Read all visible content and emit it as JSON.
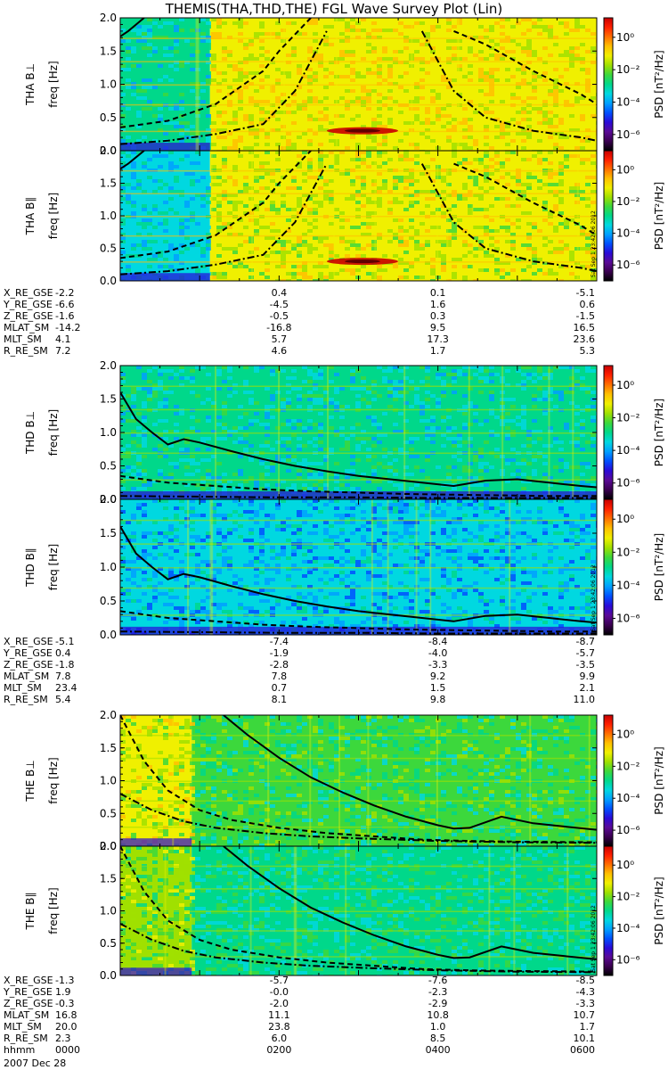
{
  "title": "THEMIS(THA,THD,THE) FGL Wave Survey Plot (Lin)",
  "timestamp": "Sat Sep  1 23:42:06 2012",
  "date_label": "2007 Dec 28",
  "colors": {
    "colorbar": [
      "#000000",
      "#3a0050",
      "#5a0a96",
      "#2a0ad8",
      "#0050ff",
      "#00a0ff",
      "#00d8e0",
      "#00d88a",
      "#3cd83c",
      "#a0e000",
      "#f0f000",
      "#ffc000",
      "#ff7000",
      "#ff2000",
      "#c80000"
    ],
    "curve": "#000000"
  },
  "colorbar": {
    "label": "PSD [nT²/Hz]",
    "ticks": [
      "10⁰",
      "10⁻²",
      "10⁻⁴",
      "10⁻⁶"
    ],
    "tick_exponents": [
      0,
      -2,
      -4,
      -6
    ]
  },
  "chart_data": {
    "type": "heatmap",
    "x_ticks": [
      "0000",
      "0200",
      "0400",
      "0600"
    ],
    "y_ticks": [
      "0.0",
      "0.5",
      "1.0",
      "1.5",
      "2.0"
    ],
    "ylim": [
      0,
      2.0
    ],
    "xlim_hours": [
      0,
      6
    ],
    "panels": [
      {
        "name": "THA B⊥",
        "ylabel": "freq [Hz]",
        "probe": "THA"
      },
      {
        "name": "THA B∥",
        "ylabel": "freq [Hz]",
        "probe": "THA"
      },
      {
        "name": "THD B⊥",
        "ylabel": "freq [Hz]",
        "probe": "THD"
      },
      {
        "name": "THD B∥",
        "ylabel": "freq [Hz]",
        "probe": "THD"
      },
      {
        "name": "THE B⊥",
        "ylabel": "freq [Hz]",
        "probe": "THE"
      },
      {
        "name": "THE B∥",
        "ylabel": "freq [Hz]",
        "probe": "THE"
      }
    ],
    "data_start_hours": {
      "THA": 0.0,
      "THD": 0.0,
      "THE": 0.0
    },
    "curves": {
      "THA": {
        "solid": {
          "x": [
            0,
            0.1,
            0.2,
            0.3
          ],
          "y": [
            1.72,
            1.8,
            1.9,
            2.0
          ]
        },
        "dash": {
          "x": [
            0,
            0.6,
            1.2,
            1.8,
            2.0,
            2.4,
            3.0,
            3.6,
            4.2,
            4.6,
            5.2,
            5.8,
            6
          ],
          "y": [
            0.35,
            0.45,
            0.7,
            1.2,
            1.5,
            2.0,
            null,
            null,
            1.8,
            1.6,
            1.2,
            0.85,
            0.7
          ]
        },
        "dashdot": {
          "x": [
            0,
            0.6,
            1.2,
            1.8,
            2.2,
            2.6,
            3.0,
            3.4,
            3.8,
            4.2,
            4.6,
            5.2,
            5.8,
            6
          ],
          "y": [
            0.1,
            0.15,
            0.25,
            0.4,
            0.9,
            1.8,
            null,
            null,
            1.8,
            0.9,
            0.5,
            0.3,
            0.2,
            0.15
          ]
        }
      },
      "THD": {
        "solid": {
          "x": [
            0,
            0.2,
            0.4,
            0.6,
            0.8,
            1.0,
            1.4,
            1.8,
            2.2,
            2.6,
            3.0,
            3.4,
            3.8,
            4.2,
            4.6,
            5.0,
            5.4,
            5.8,
            6
          ],
          "y": [
            1.6,
            1.2,
            1.0,
            0.82,
            0.9,
            0.85,
            0.72,
            0.6,
            0.5,
            0.42,
            0.35,
            0.3,
            0.25,
            0.2,
            0.28,
            0.3,
            0.25,
            0.2,
            0.18
          ]
        },
        "dash": {
          "x": [
            0,
            0.6,
            1.2,
            1.8,
            2.4,
            3.0,
            3.6,
            4.2,
            4.8,
            5.4,
            6
          ],
          "y": [
            0.35,
            0.25,
            0.2,
            0.15,
            0.12,
            0.1,
            0.08,
            0.07,
            0.06,
            0.05,
            0.05
          ]
        },
        "dashdot": {
          "x": [
            0,
            1,
            2,
            3,
            4,
            5,
            6
          ],
          "y": [
            0.05,
            0.04,
            0.03,
            0.03,
            0.02,
            0.02,
            0.02
          ]
        }
      },
      "THE": {
        "solid": {
          "x": [
            1.3,
            1.6,
            2.0,
            2.4,
            2.8,
            3.2,
            3.6,
            4.0,
            4.2,
            4.4,
            4.8,
            5.2,
            5.6,
            6
          ],
          "y": [
            2.0,
            1.7,
            1.35,
            1.05,
            0.82,
            0.62,
            0.45,
            0.32,
            0.27,
            0.28,
            0.45,
            0.35,
            0.3,
            0.25
          ]
        },
        "dash": {
          "x": [
            0,
            0.3,
            0.6,
            1.0,
            1.4,
            2.0,
            2.6,
            3.2,
            3.8,
            4.4,
            5,
            6
          ],
          "y": [
            2.0,
            1.3,
            0.85,
            0.55,
            0.4,
            0.28,
            0.2,
            0.15,
            0.1,
            0.08,
            0.07,
            0.06
          ]
        },
        "dashdot": {
          "x": [
            0,
            0.4,
            0.8,
            1.2,
            1.8,
            2.4,
            3.0,
            4,
            5,
            6
          ],
          "y": [
            0.8,
            0.55,
            0.38,
            0.28,
            0.2,
            0.15,
            0.12,
            0.08,
            0.06,
            0.05
          ]
        }
      }
    },
    "ephemeris": [
      {
        "labels": [
          "X_RE_GSE",
          "Y_RE_GSE",
          "Z_RE_GSE",
          "MLAT_SM",
          "MLT_SM",
          "R_RE_SM"
        ],
        "values": [
          [
            "-2.2",
            "0.4",
            "0.1",
            "-5.1"
          ],
          [
            "-6.6",
            "-4.5",
            "1.6",
            "0.6"
          ],
          [
            "-1.6",
            "-0.5",
            "0.3",
            "-1.5"
          ],
          [
            "-14.2",
            "-16.8",
            "9.5",
            "16.5"
          ],
          [
            "4.1",
            "5.7",
            "17.3",
            "23.6"
          ],
          [
            "7.2",
            "4.6",
            "1.7",
            "5.3"
          ]
        ]
      },
      {
        "labels": [
          "X_RE_GSE",
          "Y_RE_GSE",
          "Z_RE_GSE",
          "MLAT_SM",
          "MLT_SM",
          "R_RE_SM"
        ],
        "values": [
          [
            "-5.1",
            "-7.4",
            "-8.4",
            "-8.7"
          ],
          [
            "0.4",
            "-1.9",
            "-4.0",
            "-5.7"
          ],
          [
            "-1.8",
            "-2.8",
            "-3.3",
            "-3.5"
          ],
          [
            "7.8",
            "7.8",
            "9.2",
            "9.9"
          ],
          [
            "23.4",
            "0.7",
            "1.5",
            "2.1"
          ],
          [
            "5.4",
            "8.1",
            "9.8",
            "11.0"
          ]
        ]
      },
      {
        "labels": [
          "X_RE_GSE",
          "Y_RE_GSE",
          "Z_RE_GSE",
          "MLAT_SM",
          "MLT_SM",
          "R_RE_SM",
          "hhmm"
        ],
        "values": [
          [
            "-1.3",
            "-5.7",
            "-7.6",
            "-8.5"
          ],
          [
            "1.9",
            "-0.0",
            "-2.3",
            "-4.3"
          ],
          [
            "-0.3",
            "-2.0",
            "-2.9",
            "-3.3"
          ],
          [
            "16.8",
            "11.1",
            "10.8",
            "10.7"
          ],
          [
            "20.0",
            "23.8",
            "1.0",
            "1.7"
          ],
          [
            "2.3",
            "6.0",
            "8.5",
            "10.1"
          ],
          [
            "0000",
            "0200",
            "0400",
            "0600"
          ]
        ]
      }
    ]
  }
}
